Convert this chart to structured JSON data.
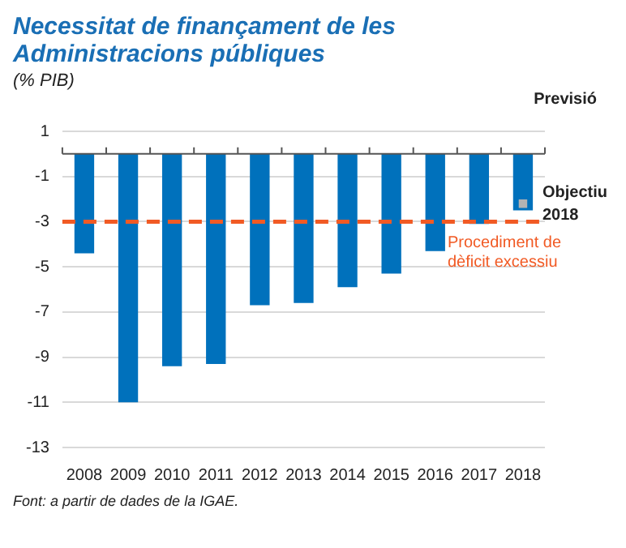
{
  "chart_data": {
    "type": "bar",
    "title": "Necessitat de finançament de les Administracions públiques",
    "subtitle": "(% PIB)",
    "categories": [
      "2008",
      "2009",
      "2010",
      "2011",
      "2012",
      "2013",
      "2014",
      "2015",
      "2016",
      "2017",
      "2018"
    ],
    "series": [
      {
        "color": "#0071bc",
        "values": [
          -4.4,
          -11.0,
          -9.4,
          -9.3,
          -6.7,
          -6.6,
          -5.9,
          -5.3,
          -4.3,
          -3.1,
          -2.5
        ]
      },
      {
        "type": "scatter",
        "color": "#b3b3b3",
        "values": [
          null,
          null,
          null,
          null,
          null,
          null,
          null,
          null,
          null,
          null,
          -2.2
        ]
      }
    ],
    "ylim": [
      -13,
      1
    ],
    "yticks": [
      1,
      -1,
      -3,
      -5,
      -7,
      -9,
      -11,
      -13
    ],
    "grid": "y",
    "legend": false,
    "marker": "square",
    "ref_lines": [
      {
        "axis": "y",
        "value": -3,
        "label": "Procediment de dèficit excessiu",
        "color": "#f15a24",
        "line_style": "dashed"
      }
    ],
    "annotations": [
      "Previsió",
      {
        "text": "Objectiu 2018",
        "x": "2018",
        "y": -2.2
      },
      "Font: a partir de dades de la IGAE."
    ]
  }
}
